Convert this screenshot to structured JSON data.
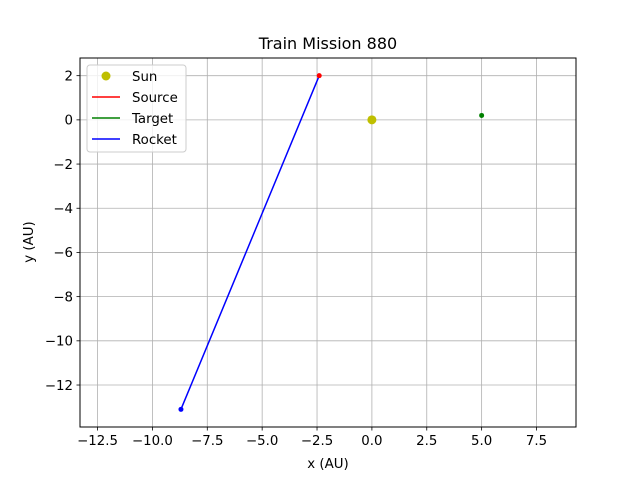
{
  "chart_data": {
    "type": "line",
    "title": "Train Mission 880",
    "xlabel": "x (AU)",
    "ylabel": "y (AU)",
    "xlim": [
      -13.3,
      9.3
    ],
    "ylim": [
      -13.9,
      2.8
    ],
    "xticks": [
      -12.5,
      -10.0,
      -7.5,
      -5.0,
      -2.5,
      0.0,
      2.5,
      5.0,
      7.5
    ],
    "xtick_labels": [
      "−12.5",
      "−10.0",
      "−7.5",
      "−5.0",
      "−2.5",
      "0.0",
      "2.5",
      "5.0",
      "7.5"
    ],
    "yticks": [
      2,
      0,
      -2,
      -4,
      -6,
      -8,
      -10,
      -12
    ],
    "ytick_labels": [
      "2",
      "0",
      "−2",
      "−4",
      "−6",
      "−8",
      "−10",
      "−12"
    ],
    "grid": true,
    "legend_position": "top-left",
    "legend": [
      "Sun",
      "Source",
      "Target",
      "Rocket"
    ],
    "series": [
      {
        "name": "Sun",
        "kind": "marker",
        "color": "#bfbf00",
        "x": [
          0.0
        ],
        "y": [
          0.0
        ]
      },
      {
        "name": "Source",
        "kind": "line",
        "color": "#ff0000",
        "x": [
          -2.4
        ],
        "y": [
          2.0
        ]
      },
      {
        "name": "Target",
        "kind": "line",
        "color": "#008000",
        "x": [
          5.0
        ],
        "y": [
          0.2
        ]
      },
      {
        "name": "Rocket",
        "kind": "line",
        "color": "#0000ff",
        "x": [
          -2.4,
          -8.7
        ],
        "y": [
          2.0,
          -13.1
        ]
      }
    ],
    "point_markers": [
      {
        "x": -2.4,
        "y": 2.0,
        "color": "#ff0000"
      },
      {
        "x": 5.0,
        "y": 0.2,
        "color": "#008000"
      },
      {
        "x": -8.7,
        "y": -13.1,
        "color": "#0000ff"
      }
    ]
  }
}
